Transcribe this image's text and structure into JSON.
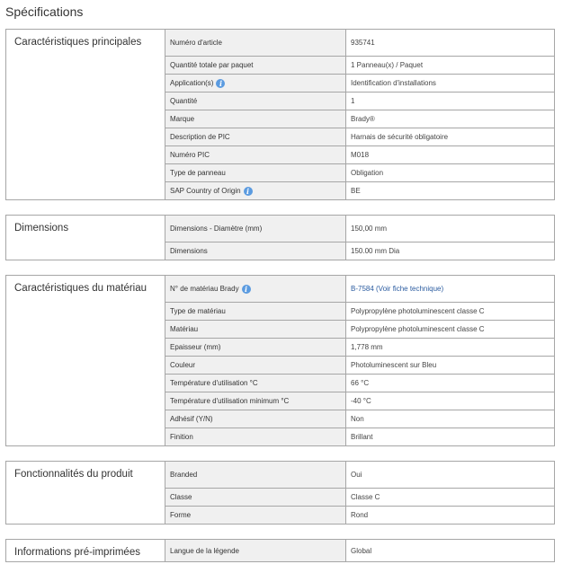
{
  "title": "Spécifications",
  "colors": {
    "info_icon": "#5b9be0",
    "link": "#2b5ca0",
    "key_bg": "#f0f0f0",
    "border": "#a6a6a6"
  },
  "sections": [
    {
      "label": "Caractéristiques principales",
      "rows": [
        {
          "key": "Numéro d'article",
          "value": "935741"
        },
        {
          "key": "Quantité totale par paquet",
          "value": "1 Panneau(x) / Paquet"
        },
        {
          "key": "Application(s)",
          "value": "Identification d'installations",
          "info": true
        },
        {
          "key": "Quantité",
          "value": "1"
        },
        {
          "key": "Marque",
          "value": "Brady®"
        },
        {
          "key": "Description de PIC",
          "value": "Harnais de sécurité obligatoire"
        },
        {
          "key": "Numéro PIC",
          "value": "M018"
        },
        {
          "key": "Type de panneau",
          "value": "Obligation"
        },
        {
          "key": "SAP Country of Origin",
          "value": "BE",
          "info": true
        }
      ]
    },
    {
      "label": "Dimensions",
      "rows": [
        {
          "key": "Dimensions - Diamètre (mm)",
          "value": "150,00 mm"
        },
        {
          "key": "Dimensions",
          "value": "150.00 mm Dia"
        }
      ]
    },
    {
      "label": "Caractéristiques du matériau",
      "rows": [
        {
          "key": "N° de matériau Brady",
          "value": "B-7584 (Voir fiche technique)",
          "info": true,
          "link": true
        },
        {
          "key": "Type de matériau",
          "value": "Polypropylène photoluminescent classe C"
        },
        {
          "key": "Matériau",
          "value": "Polypropylène photoluminescent classe C"
        },
        {
          "key": "Epaisseur (mm)",
          "value": "1,778 mm"
        },
        {
          "key": "Couleur",
          "value": "Photoluminescent sur Bleu"
        },
        {
          "key": "Température d'utilisation °C",
          "value": "66 °C"
        },
        {
          "key": "Température d'utilisation minimum °C",
          "value": "-40 °C"
        },
        {
          "key": "Adhésif (Y/N)",
          "value": "Non"
        },
        {
          "key": "Finition",
          "value": "Brillant"
        }
      ]
    },
    {
      "label": "Fonctionnalités du produit",
      "rows": [
        {
          "key": "Branded",
          "value": "Oui"
        },
        {
          "key": "Classe",
          "value": "Classe C"
        },
        {
          "key": "Forme",
          "value": "Rond"
        }
      ]
    },
    {
      "label": "Informations pré-imprimées",
      "rows": [
        {
          "key": "Langue de la légende",
          "value": "Global"
        }
      ]
    }
  ]
}
